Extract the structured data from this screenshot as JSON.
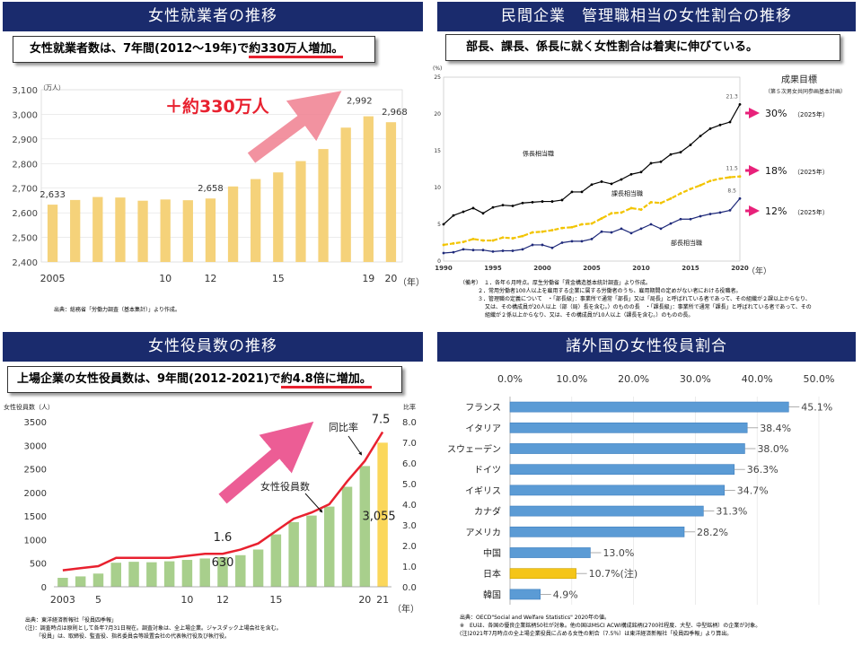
{
  "panels": {
    "tl": {
      "title": "女性就業者の推移",
      "callout_lead": "女性就業者数は、7年間(2012～19年)で",
      "callout_highlight": "約330万人増加。",
      "note": "出典：総務省「労働力調査（基本集計）」より作成。"
    },
    "tr": {
      "title": "民間企業　管理職相当の女性割合の推移",
      "callout": "部長、課長、係長に就く女性割合は着実に伸びている。",
      "notes": [
        "（備考）　１．各年６月時点。厚生労働省「賃金構造基本統計調査」より作成。",
        "２．常用労働者100人以上を雇用する企業に属する労働者のうち、雇用期間の定めがない者における役職者。",
        "３．管理職の定義について　・「部長級」：事業所で通常「部長」又は「局長」と呼ばれている者であって、その組織が２課以上からなり、",
        "又は、その構成員が20人以上（部（局）長を含む。）のものの長　・「課長級」：事業所で通常「課長」と呼ばれている者であって、その",
        "組織が２係以上からなり、又は、その構成員が10人以上（課長を含む。）のものの長。"
      ]
    },
    "bl": {
      "title": "女性役員数の推移",
      "callout_lead": "上場企業の女性役員数は、9年間(2012-2021)で",
      "callout_highlight": "約4.8倍に増加。",
      "notes": [
        "出典：東洋経済新報社「役員四季報」",
        "(注)：調査時点は原則として各年7月31日現在。調査対象は、全上場企業。ジャスダック上場会社を含む。",
        "「役員」は、取締役、監査役、指名委員会等設置会社の代表執行役及び執行役。"
      ]
    },
    "br": {
      "title": "諸外国の女性役員割合",
      "notes": [
        "出典：OECD\"Social and Welfare Statistics\" 2020年の値。",
        "※　EUは、各国の優良企業銘柄50社が対象。他の国はMSCI ACWI構成銘柄(2700社程度、大型、中型銘柄）の企業が対象。",
        "(注)2021年7月時点の全上場企業役員に占める女性の割合（7.5％）は東洋経済新報社「役員四季報」より算出。"
      ]
    }
  },
  "chart_data": [
    {
      "id": "female-employment",
      "type": "bar",
      "unit_label": "（万人）",
      "x_axis_suffix": "（年）",
      "categories": [
        2005,
        2006,
        2007,
        2008,
        2009,
        2010,
        2011,
        2012,
        2013,
        2014,
        2015,
        2016,
        2017,
        2018,
        2019,
        2020
      ],
      "tick_labels": {
        "2005": "2005",
        "2010": "10",
        "2012": "12",
        "2015": "15",
        "2019": "19",
        "2020": "20"
      },
      "values": [
        2633,
        2652,
        2664,
        2662,
        2649,
        2654,
        2651,
        2658,
        2707,
        2737,
        2764,
        2810,
        2859,
        2946,
        2992,
        2968
      ],
      "data_labels": {
        "2005": "2,633",
        "2012": "2,658",
        "2019": "2,992",
        "2020": "2,968"
      },
      "ylim": [
        2400,
        3100
      ],
      "yticks": [
        "2,400",
        "2,500",
        "2,600",
        "2,700",
        "2,800",
        "2,900",
        "3,000",
        "3,100"
      ],
      "annotation": "＋約330万人",
      "bar_color": "#f5d27a"
    },
    {
      "id": "manager-share",
      "type": "line",
      "unit_label": "(%)",
      "x_axis_suffix": "（年）",
      "x": [
        1990,
        1991,
        1992,
        1993,
        1994,
        1995,
        1996,
        1997,
        1998,
        1999,
        2000,
        2001,
        2002,
        2003,
        2004,
        2005,
        2006,
        2007,
        2008,
        2009,
        2010,
        2011,
        2012,
        2013,
        2014,
        2015,
        2016,
        2017,
        2018,
        2019,
        2020
      ],
      "xticks": [
        1990,
        1995,
        2000,
        2005,
        2010,
        2015,
        2020
      ],
      "ylim": [
        0,
        25
      ],
      "yticks": [
        0,
        5,
        10,
        15,
        20,
        25
      ],
      "series": [
        {
          "name": "係長相当職",
          "color": "#000000",
          "end_label": "21.3",
          "values": [
            5.0,
            6.2,
            6.7,
            7.2,
            6.5,
            7.3,
            7.6,
            7.5,
            7.9,
            8.0,
            8.1,
            8.1,
            8.3,
            9.4,
            9.4,
            10.4,
            10.8,
            10.5,
            11.1,
            11.8,
            12.1,
            13.3,
            13.5,
            14.5,
            14.8,
            15.8,
            17.0,
            18.0,
            18.5,
            18.9,
            21.3
          ]
        },
        {
          "name": "課長相当職",
          "color": "#f2c400",
          "end_label": "11.5",
          "values": [
            2.2,
            2.4,
            2.6,
            3.0,
            2.8,
            2.8,
            3.2,
            3.1,
            3.4,
            3.9,
            4.0,
            4.2,
            4.5,
            4.6,
            5.0,
            5.1,
            5.8,
            6.5,
            6.6,
            7.2,
            7.0,
            8.0,
            7.9,
            8.5,
            9.2,
            9.8,
            10.3,
            10.9,
            11.2,
            11.4,
            11.5
          ]
        },
        {
          "name": "部長相当職",
          "color": "#1f2a7a",
          "end_label": "8.5",
          "values": [
            1.1,
            1.2,
            1.6,
            1.5,
            1.5,
            1.3,
            1.4,
            1.4,
            1.6,
            2.2,
            2.2,
            1.8,
            2.5,
            2.7,
            2.7,
            3.0,
            4.0,
            3.9,
            4.4,
            3.8,
            4.4,
            5.0,
            4.4,
            5.1,
            5.7,
            5.7,
            6.1,
            6.4,
            6.6,
            6.9,
            8.5
          ]
        }
      ],
      "targets": {
        "heading": "成果目標",
        "subheading": "（第５次男女共同参画基本計画）",
        "items": [
          {
            "value": "30%",
            "year": "（2025年）"
          },
          {
            "value": "18%",
            "year": "（2025年）"
          },
          {
            "value": "12%",
            "year": "（2025年）"
          }
        ]
      }
    },
    {
      "id": "female-executives",
      "type": "bar",
      "unit_label": "女性役員数（人）",
      "y2_label": "比率",
      "x_axis_suffix": "（年）",
      "categories": [
        2003,
        2004,
        2005,
        2006,
        2007,
        2008,
        2009,
        2010,
        2011,
        2012,
        2013,
        2014,
        2015,
        2016,
        2017,
        2018,
        2019,
        2020,
        2021
      ],
      "tick_labels": {
        "2003": "2003",
        "2005": "5",
        "2010": "10",
        "2012": "12",
        "2015": "15",
        "2020": "20",
        "2021": "21"
      },
      "values": [
        190,
        220,
        280,
        510,
        530,
        520,
        540,
        570,
        600,
        630,
        670,
        790,
        1110,
        1370,
        1510,
        1700,
        2120,
        2560,
        3055
      ],
      "ratio": [
        0.8,
        0.9,
        1.0,
        1.4,
        1.4,
        1.4,
        1.4,
        1.5,
        1.6,
        1.6,
        1.8,
        2.1,
        2.7,
        3.3,
        3.6,
        4.0,
        5.1,
        6.1,
        7.5
      ],
      "ylim": [
        0,
        3500
      ],
      "yticks": [
        0,
        500,
        1000,
        1500,
        2000,
        2500,
        3000,
        3500
      ],
      "y2lim": [
        0,
        8.0
      ],
      "y2ticks": [
        "0.0",
        "1.0",
        "2.0",
        "3.0",
        "4.0",
        "5.0",
        "6.0",
        "7.0",
        "8.0"
      ],
      "data_labels": {
        "count_2012": "630",
        "ratio_2012": "1.6",
        "count_2021": "3,055",
        "ratio_2021": "7.5"
      },
      "annotations": {
        "ratio_name": "同比率",
        "count_name": "女性役員数"
      },
      "bar_color": "#a8cf8c",
      "last_bar_color": "#fbd75b",
      "line_color": "#e8212f"
    },
    {
      "id": "country-executive-share",
      "type": "bar",
      "orientation": "horizontal",
      "xlim": [
        0,
        50
      ],
      "xticks": [
        "0.0%",
        "10.0%",
        "20.0%",
        "30.0%",
        "40.0%",
        "50.0%"
      ],
      "categories": [
        "フランス",
        "イタリア",
        "スウェーデン",
        "ドイツ",
        "イギリス",
        "カナダ",
        "アメリカ",
        "中国",
        "日本",
        "韓国"
      ],
      "values": [
        45.1,
        38.4,
        38.0,
        36.3,
        34.7,
        31.3,
        28.2,
        13.0,
        10.7,
        4.9
      ],
      "value_labels": [
        "45.1%",
        "38.4%",
        "38.0%",
        "36.3%",
        "34.7%",
        "31.3%",
        "28.2%",
        "13.0%",
        "10.7%(注)",
        "4.9%"
      ],
      "bar_color": "#5b9bd5",
      "highlight": {
        "category": "日本",
        "color": "#f5c518"
      }
    }
  ]
}
